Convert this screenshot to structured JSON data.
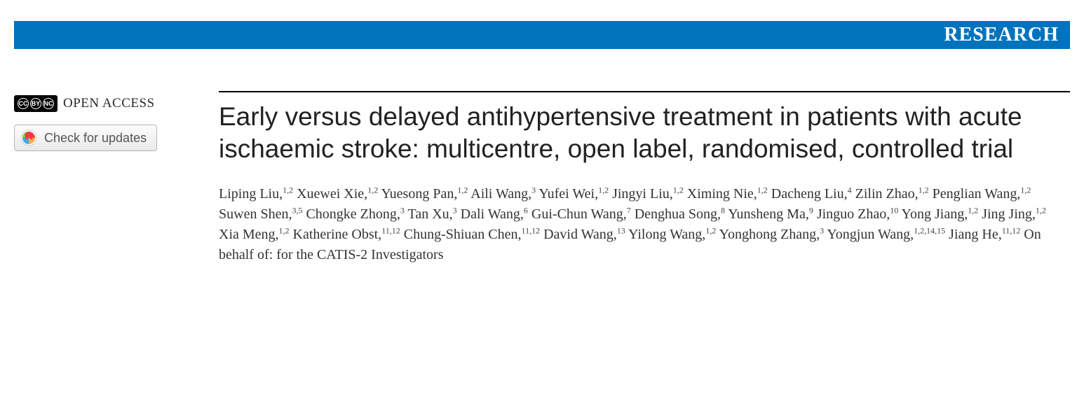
{
  "banner": {
    "label": "RESEARCH",
    "background_color": "#0073bc",
    "text_color": "#ffffff"
  },
  "open_access": {
    "label": "OPEN ACCESS",
    "cc_symbols": [
      "CC",
      "BY",
      "NC"
    ]
  },
  "updates_button": {
    "label": "Check for updates"
  },
  "article": {
    "title": "Early versus delayed antihypertensive treatment in patients with acute ischaemic stroke: multicentre, open label, randomised, controlled trial",
    "authors": [
      {
        "name": "Liping Liu",
        "affil": "1,2"
      },
      {
        "name": "Xuewei Xie",
        "affil": "1,2"
      },
      {
        "name": "Yuesong Pan",
        "affil": "1,2"
      },
      {
        "name": "Aili Wang",
        "affil": "3"
      },
      {
        "name": "Yufei Wei",
        "affil": "1,2"
      },
      {
        "name": "Jingyi Liu",
        "affil": "1,2"
      },
      {
        "name": "Ximing Nie",
        "affil": "1,2"
      },
      {
        "name": "Dacheng Liu",
        "affil": "4"
      },
      {
        "name": "Zilin Zhao",
        "affil": "1,2"
      },
      {
        "name": "Penglian Wang",
        "affil": "1,2"
      },
      {
        "name": "Suwen Shen",
        "affil": "3,5"
      },
      {
        "name": "Chongke Zhong",
        "affil": "3"
      },
      {
        "name": "Tan Xu",
        "affil": "3"
      },
      {
        "name": "Dali Wang",
        "affil": "6"
      },
      {
        "name": "Gui-Chun Wang",
        "affil": "7"
      },
      {
        "name": "Denghua Song",
        "affil": "8"
      },
      {
        "name": "Yunsheng Ma",
        "affil": "9"
      },
      {
        "name": "Jinguo Zhao",
        "affil": "10"
      },
      {
        "name": "Yong Jiang",
        "affil": "1,2"
      },
      {
        "name": "Jing Jing",
        "affil": "1,2"
      },
      {
        "name": "Xia Meng",
        "affil": "1,2"
      },
      {
        "name": "Katherine Obst",
        "affil": "11,12"
      },
      {
        "name": "Chung-Shiuan Chen",
        "affil": "11,12"
      },
      {
        "name": "David Wang",
        "affil": "13"
      },
      {
        "name": "Yilong Wang",
        "affil": "1,2"
      },
      {
        "name": "Yonghong Zhang",
        "affil": "3"
      },
      {
        "name": "Yongjun Wang",
        "affil": "1,2,14,15"
      },
      {
        "name": "Jiang He",
        "affil": "11,12"
      }
    ],
    "group_suffix": "On behalf of: for the CATIS-2 Investigators"
  },
  "style": {
    "title_fontsize": 37,
    "author_fontsize": 20,
    "title_color": "#222222",
    "author_color": "#333333",
    "rule_color": "#000000"
  }
}
